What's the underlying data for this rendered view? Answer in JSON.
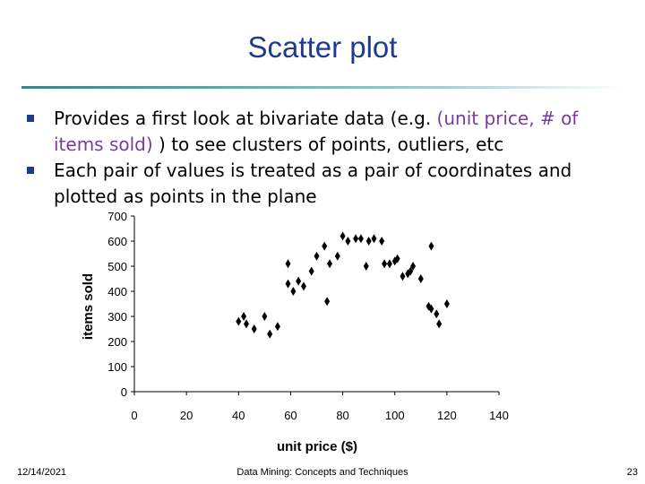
{
  "slide": {
    "title": "Scatter plot",
    "bullets": [
      {
        "pre": "Provides a first look at bivariate data (e.g. ",
        "highlight": "(unit price, # of items sold)",
        "post": " ) to see clusters of points, outliers, etc"
      },
      {
        "pre": "Each pair of values is treated as a pair of coordinates and plotted as points in the plane",
        "highlight": "",
        "post": ""
      }
    ],
    "footer": {
      "date": "12/14/2021",
      "course": "Data Mining: Concepts and Techniques",
      "page": "23"
    }
  },
  "colors": {
    "title": "#1f3c8c",
    "highlight": "#7b3aa0",
    "points": "#000000"
  },
  "chart_data": {
    "type": "scatter",
    "title": "",
    "xlabel": "unit price ($)",
    "ylabel": "items sold",
    "xlim": [
      0,
      140
    ],
    "ylim": [
      0,
      700
    ],
    "xticks": [
      0,
      20,
      40,
      60,
      80,
      100,
      120,
      140
    ],
    "yticks": [
      0,
      100,
      200,
      300,
      400,
      500,
      600,
      700
    ],
    "grid": false,
    "series": [
      {
        "points": [
          [
            40,
            280
          ],
          [
            42,
            300
          ],
          [
            43,
            270
          ],
          [
            46,
            250
          ],
          [
            50,
            300
          ],
          [
            52,
            230
          ],
          [
            55,
            260
          ],
          [
            59,
            430
          ],
          [
            59,
            510
          ],
          [
            61,
            400
          ],
          [
            63,
            440
          ],
          [
            65,
            420
          ],
          [
            68,
            480
          ],
          [
            70,
            540
          ],
          [
            73,
            580
          ],
          [
            74,
            360
          ],
          [
            75,
            510
          ],
          [
            78,
            540
          ],
          [
            80,
            620
          ],
          [
            82,
            600
          ],
          [
            85,
            610
          ],
          [
            87,
            610
          ],
          [
            89,
            500
          ],
          [
            90,
            600
          ],
          [
            92,
            610
          ],
          [
            95,
            600
          ],
          [
            96,
            510
          ],
          [
            98,
            510
          ],
          [
            100,
            520
          ],
          [
            101,
            530
          ],
          [
            103,
            460
          ],
          [
            105,
            470
          ],
          [
            106,
            480
          ],
          [
            107,
            500
          ],
          [
            110,
            450
          ],
          [
            113,
            340
          ],
          [
            114,
            330
          ],
          [
            114,
            580
          ],
          [
            116,
            310
          ],
          [
            117,
            270
          ],
          [
            120,
            350
          ]
        ]
      }
    ]
  }
}
